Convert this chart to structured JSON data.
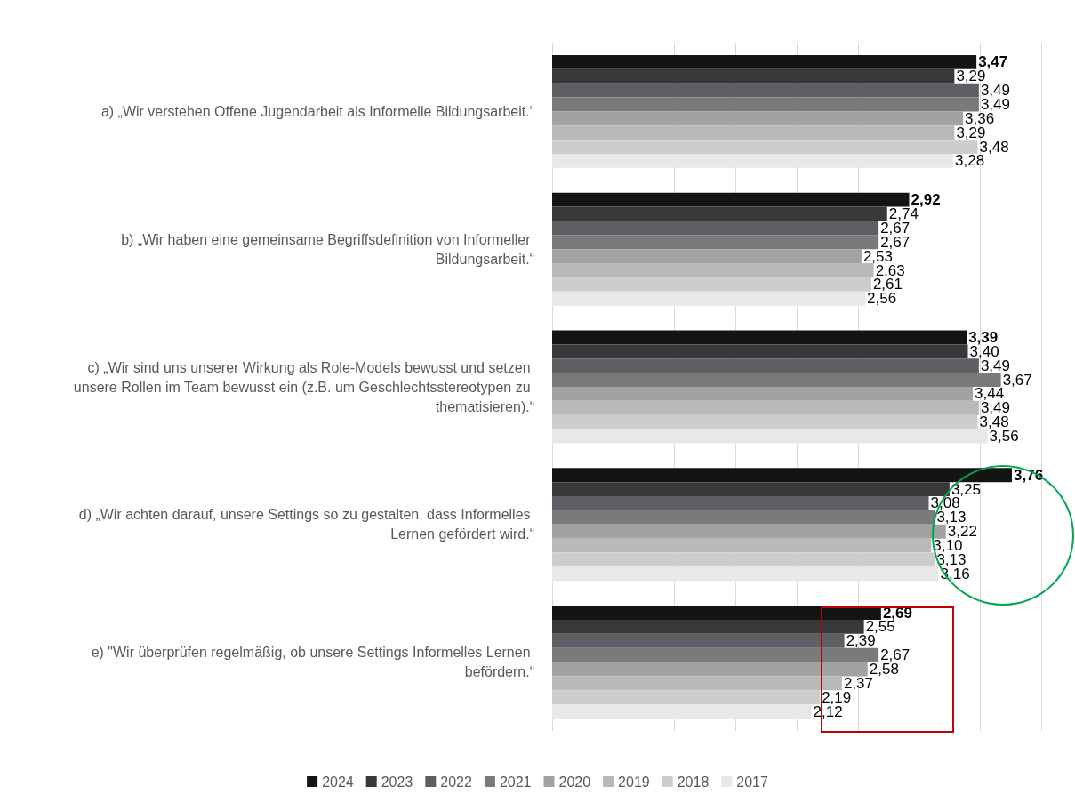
{
  "chart_data": {
    "type": "bar",
    "orientation": "horizontal",
    "categories": [
      "a) „Wir verstehen Offene Jugendarbeit als Informelle Bildungsarbeit.“",
      "b) „Wir haben eine gemeinsame Begriffsdefinition von Informeller Bildungsarbeit.“",
      "c) „Wir sind uns unserer Wirkung als Role-Models bewusst und setzen unsere Rollen im Team bewusst ein (z.B. um Geschlechtsstereotypen zu thematisieren).“",
      "d) „Wir achten darauf, unsere Settings so zu gestalten, dass Informelles Lernen gefördert wird.“",
      "e) \"Wir überprüfen regelmäßig, ob unsere Settings Informelles Lernen befördern.“"
    ],
    "series": [
      {
        "name": "2024",
        "color": "#141414",
        "values": [
          3.47,
          2.92,
          3.39,
          3.76,
          2.69
        ],
        "value_labels": [
          "3,47",
          "2,92",
          "3,39",
          "3,76",
          "2,69"
        ]
      },
      {
        "name": "2023",
        "color": "#383838",
        "values": [
          3.29,
          2.74,
          3.4,
          3.25,
          2.55
        ],
        "value_labels": [
          "3,29",
          "2,74",
          "3,40",
          "3,25",
          "2,55"
        ]
      },
      {
        "name": "2022",
        "color": "#5e5e64",
        "values": [
          3.49,
          2.67,
          3.49,
          3.08,
          2.39
        ],
        "value_labels": [
          "3,49",
          "2,67",
          "3,49",
          "3,08",
          "2,39"
        ]
      },
      {
        "name": "2021",
        "color": "#7a7a7a",
        "values": [
          3.49,
          2.67,
          3.67,
          3.13,
          2.67
        ],
        "value_labels": [
          "3,49",
          "2,67",
          "3,67",
          "3,13",
          "2,67"
        ]
      },
      {
        "name": "2020",
        "color": "#a2a2a2",
        "values": [
          3.36,
          2.53,
          3.44,
          3.22,
          2.58
        ],
        "value_labels": [
          "3,36",
          "2,53",
          "3,44",
          "3,22",
          "2,58"
        ]
      },
      {
        "name": "2019",
        "color": "#b9b9b9",
        "values": [
          3.29,
          2.63,
          3.49,
          3.1,
          2.37
        ],
        "value_labels": [
          "3,29",
          "2,63",
          "3,49",
          "3,10",
          "2,37"
        ]
      },
      {
        "name": "2018",
        "color": "#cdcdcd",
        "values": [
          3.48,
          2.61,
          3.48,
          3.13,
          2.19
        ],
        "value_labels": [
          "3,48",
          "2,61",
          "3,48",
          "3,13",
          "2,19"
        ]
      },
      {
        "name": "2017",
        "color": "#e8e8e8",
        "values": [
          3.28,
          2.56,
          3.56,
          3.16,
          2.12
        ],
        "value_labels": [
          "3,28",
          "2,56",
          "3,56",
          "3,16",
          "2,12"
        ]
      }
    ],
    "xlim": [
      0,
      4
    ],
    "xticks": [
      {
        "value": 0,
        "label": null
      },
      {
        "value": 0.5,
        "label": null
      },
      {
        "value": 1,
        "label": null
      },
      {
        "value": 1.5,
        "label": null
      },
      {
        "value": 2,
        "label": null
      },
      {
        "value": 2.5,
        "label": null
      },
      {
        "value": 3,
        "label": null
      },
      {
        "value": 3.5,
        "label": null
      },
      {
        "value": 4,
        "label": null
      }
    ],
    "tick_labels": "y",
    "grid": "x",
    "legend": "bottom"
  }
}
